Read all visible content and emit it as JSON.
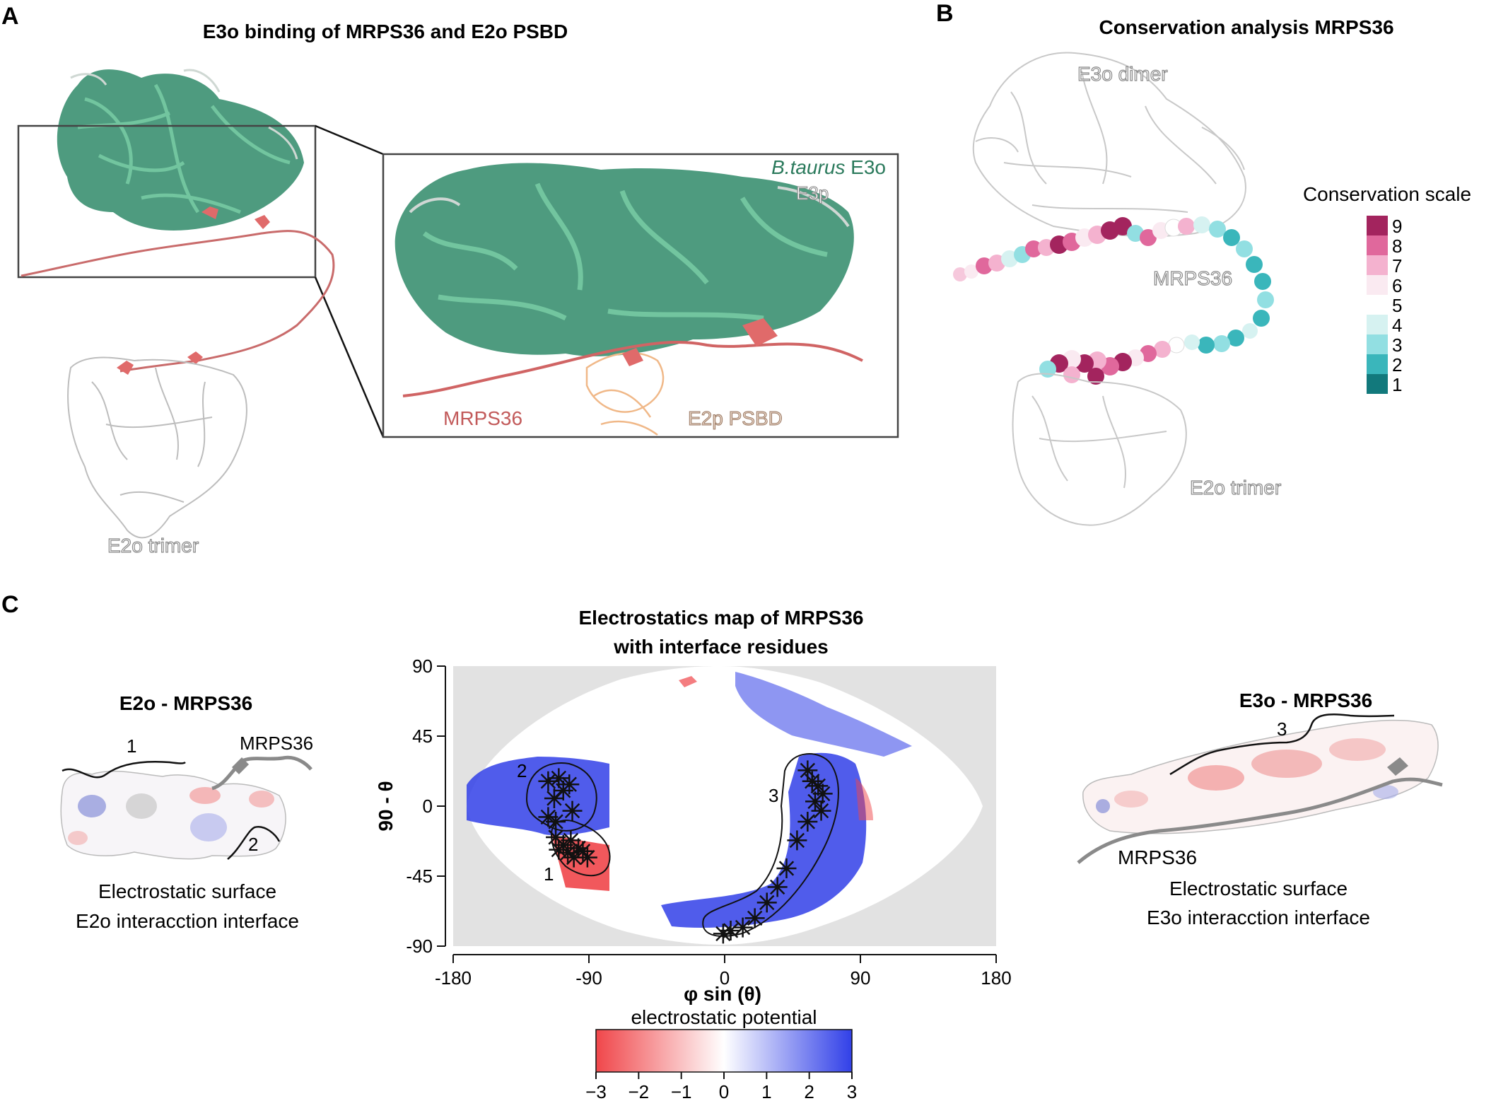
{
  "panel_a": {
    "letter": "A",
    "title": "E3o binding of MRPS36 and E2o PSBD",
    "inset_species": "B.taurus",
    "inset_e3o": " E3o",
    "inset_e3p": "E3p",
    "label_mrps36": "MRPS36",
    "label_e2p_psbd": "E2p PSBD",
    "label_e2o_trimer": "E2o trimer"
  },
  "panel_b": {
    "letter": "B",
    "title": "Conservation analysis MRPS36",
    "label_e3o_dimer": "E3o dimer",
    "label_mrps36": "MRPS36",
    "label_e2o_trimer": "E2o trimer",
    "scale_title": "Conservation scale",
    "scale_levels": [
      "9",
      "8",
      "7",
      "6",
      "5",
      "4",
      "3",
      "2",
      "1"
    ],
    "scale_colors": [
      "#a3245e",
      "#e0689c",
      "#f4b2cf",
      "#faeaf1",
      "#ffffff",
      "#d6f2f1",
      "#92dfe2",
      "#3ab6bb",
      "#12797c"
    ]
  },
  "panel_c": {
    "letter": "C",
    "left_title": "E2o - MRPS36",
    "left_region_1": "1",
    "left_region_2": "2",
    "left_mrps36": "MRPS36",
    "left_caption_line1": "Electrostatic surface",
    "left_caption_line2": "E2o interacction interface",
    "right_title": "E3o - MRPS36",
    "right_region_3": "3",
    "right_mrps36": "MRPS36",
    "right_caption_line1": "Electrostatic surface",
    "right_caption_line2": "E3o interacction interface"
  },
  "chart_data": {
    "type": "heatmap",
    "title_line1": "Electrostatics map of MRPS36",
    "title_line2": "with interface residues",
    "xlabel": "φ sin (θ)",
    "ylabel": "90 - θ",
    "xlim": [
      -180,
      180
    ],
    "ylim": [
      -90,
      90
    ],
    "x_ticks": [
      "-180",
      "-90",
      "0",
      "90",
      "180"
    ],
    "y_ticks": [
      "90",
      "45",
      "0",
      "-45",
      "-90"
    ],
    "region_labels": [
      "1",
      "2",
      "3"
    ],
    "interface_residues": [
      {
        "region": "1",
        "points": [
          [
            -112,
            -20
          ],
          [
            -110,
            -28
          ],
          [
            -107,
            -25
          ],
          [
            -104,
            -30
          ],
          [
            -102,
            -22
          ],
          [
            -100,
            -33
          ],
          [
            -97,
            -27
          ],
          [
            -94,
            -29
          ],
          [
            -91,
            -33
          ]
        ]
      },
      {
        "region": "2",
        "points": [
          [
            -117,
            16
          ],
          [
            -113,
            5
          ],
          [
            -110,
            18
          ],
          [
            -107,
            10
          ],
          [
            -103,
            14
          ],
          [
            -101,
            -3
          ],
          [
            -117,
            -7
          ],
          [
            -112,
            -10
          ]
        ]
      },
      {
        "region": "3",
        "points": [
          [
            55,
            23
          ],
          [
            58,
            16
          ],
          [
            62,
            13
          ],
          [
            65,
            8
          ],
          [
            60,
            3
          ],
          [
            55,
            -10
          ],
          [
            48,
            -22
          ],
          [
            41,
            -40
          ],
          [
            35,
            -52
          ],
          [
            28,
            -62
          ],
          [
            20,
            -72
          ],
          [
            12,
            -78
          ],
          [
            4,
            -80
          ],
          [
            -1,
            -82
          ],
          [
            64,
            -3
          ]
        ]
      }
    ],
    "colorbar": {
      "label": "electrostatic potential",
      "ticks": [
        "−3",
        "−2",
        "−1",
        "0",
        "1",
        "2",
        "3"
      ],
      "min": -3,
      "max": 3,
      "low_color": "#f0464a",
      "mid_color": "#ffffff",
      "high_color": "#3140e8"
    }
  }
}
